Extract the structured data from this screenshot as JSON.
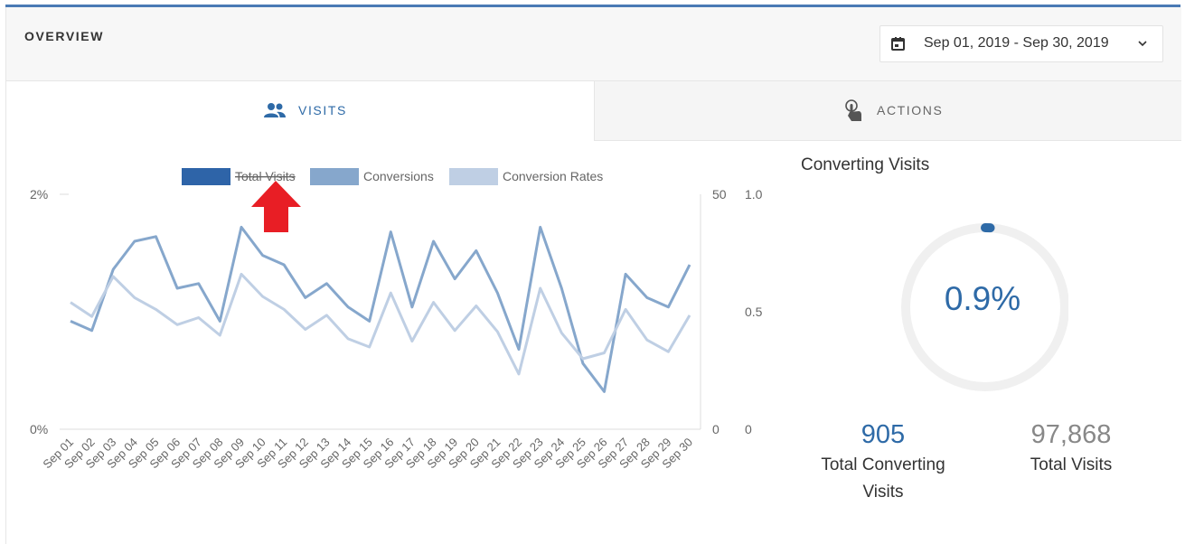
{
  "header": {
    "title": "OVERVIEW",
    "date_range": "Sep 01, 2019 - Sep 30, 2019",
    "calendar_icon": "calendar-icon",
    "chevron_icon": "chevron-down-icon"
  },
  "tabs": [
    {
      "label": "VISITS",
      "icon": "users-icon",
      "active": true
    },
    {
      "label": "ACTIONS",
      "icon": "touch-icon",
      "active": false
    }
  ],
  "colors": {
    "accent": "#2e6aa7",
    "total_visits": "#2e64a8",
    "conversions": "#86a7cc",
    "conversion_rates": "#bfcfe4",
    "annotation_arrow": "#e81e25"
  },
  "chart_data": {
    "type": "line",
    "categories": [
      "Sep 01",
      "Sep 02",
      "Sep 03",
      "Sep 04",
      "Sep 05",
      "Sep 06",
      "Sep 07",
      "Sep 08",
      "Sep 09",
      "Sep 10",
      "Sep 11",
      "Sep 12",
      "Sep 13",
      "Sep 14",
      "Sep 15",
      "Sep 16",
      "Sep 17",
      "Sep 18",
      "Sep 19",
      "Sep 20",
      "Sep 21",
      "Sep 22",
      "Sep 23",
      "Sep 24",
      "Sep 25",
      "Sep 26",
      "Sep 27",
      "Sep 28",
      "Sep 29",
      "Sep 30"
    ],
    "legend": [
      {
        "name": "Total Visits",
        "hidden": true
      },
      {
        "name": "Conversions",
        "hidden": false
      },
      {
        "name": "Conversion Rates",
        "hidden": false
      }
    ],
    "legend_position": "top",
    "axes": {
      "left": {
        "ticks": [
          "2%",
          "0%"
        ],
        "range": [
          0,
          2
        ],
        "unit": "%"
      },
      "middle": {
        "ticks": [
          "50",
          "0"
        ],
        "range": [
          0,
          50
        ]
      },
      "right": {
        "ticks": [
          "1.0",
          "0.5",
          "0"
        ],
        "range": [
          0,
          1
        ]
      }
    },
    "series": [
      {
        "name": "Conversions",
        "axis": "middle",
        "values": [
          23,
          21,
          34,
          40,
          41,
          30,
          31,
          23,
          43,
          37,
          35,
          28,
          31,
          26,
          23,
          42,
          26,
          40,
          32,
          38,
          29,
          17,
          43,
          30,
          14,
          8,
          33,
          28,
          26,
          35
        ]
      },
      {
        "name": "Conversion Rates",
        "axis": "left",
        "values": [
          1.08,
          0.96,
          1.3,
          1.12,
          1.02,
          0.89,
          0.95,
          0.8,
          1.32,
          1.13,
          1.02,
          0.85,
          0.97,
          0.77,
          0.7,
          1.16,
          0.75,
          1.08,
          0.84,
          1.05,
          0.83,
          0.47,
          1.2,
          0.82,
          0.6,
          0.65,
          1.02,
          0.76,
          0.66,
          0.97
        ]
      }
    ],
    "grid": false
  },
  "annotation": {
    "shape": "arrow-up",
    "target": "Total Visits legend"
  },
  "side": {
    "title": "Converting Visits",
    "percent": "0.9%",
    "percent_value": 0.009,
    "total_converting_value": "905",
    "total_converting_label": "Total Converting Visits",
    "total_visits_value": "97,868",
    "total_visits_label": "Total Visits"
  }
}
